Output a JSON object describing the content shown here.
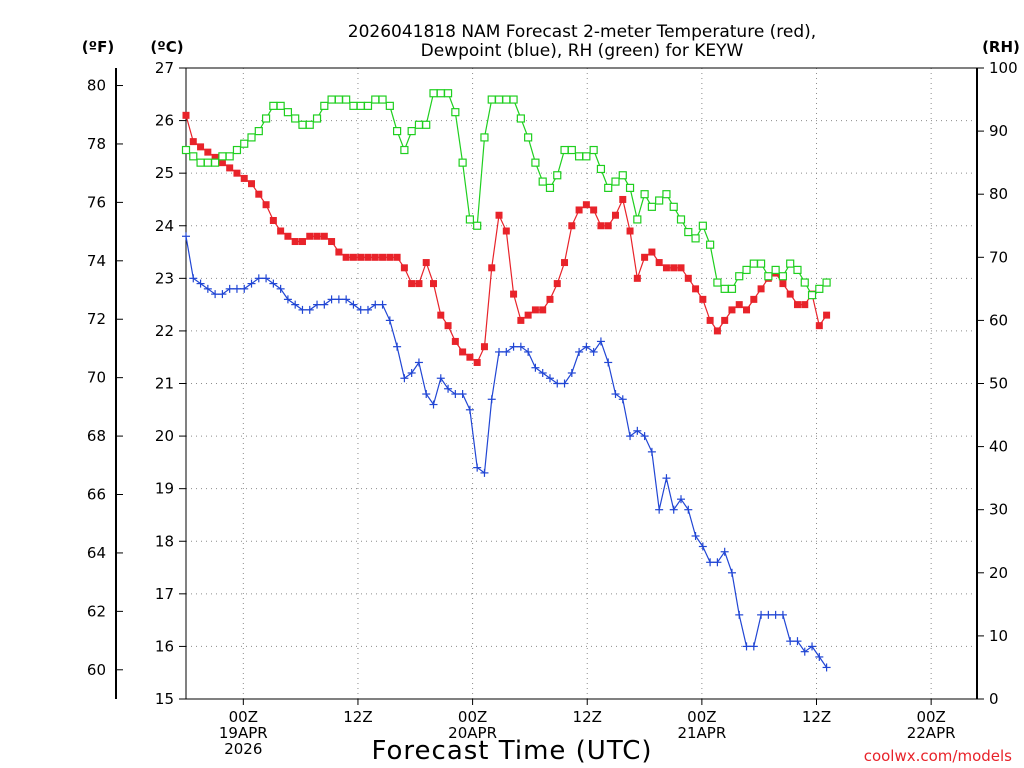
{
  "chart_data": {
    "type": "line",
    "title": "2026041818 NAM Forecast 2-meter Temperature (red),",
    "subtitle": "Dewpoint (blue), RH (green) for KEYW",
    "xlabel": "Forecast Time (UTC)",
    "y_left_unit": "(ºC)",
    "y_far_left_unit": "(ºF)",
    "y_right_unit": "(RH)",
    "ylim_c": [
      15,
      27
    ],
    "ylim_rh": [
      0,
      100
    ],
    "ylim_f": [
      59,
      80.6
    ],
    "x_range_hours": [
      -5,
      64
    ],
    "y_ticks_c": [
      15,
      16,
      17,
      18,
      19,
      20,
      21,
      22,
      23,
      24,
      25,
      26,
      27
    ],
    "y_ticks_f": [
      60,
      62,
      64,
      66,
      68,
      70,
      72,
      74,
      76,
      78,
      80
    ],
    "y_ticks_rh": [
      0,
      10,
      20,
      30,
      40,
      50,
      60,
      70,
      80,
      90,
      100
    ],
    "x_ticks": [
      {
        "hour": 0,
        "lines": [
          "00Z",
          "19APR",
          "2026"
        ]
      },
      {
        "hour": 10,
        "lines": [
          "12Z"
        ]
      },
      {
        "hour": 20,
        "lines": [
          "00Z",
          "20APR"
        ]
      },
      {
        "hour": 30,
        "lines": [
          "12Z"
        ]
      },
      {
        "hour": 40,
        "lines": [
          "00Z",
          "21APR"
        ]
      },
      {
        "hour": 50,
        "lines": [
          "12Z"
        ]
      },
      {
        "hour": 60,
        "lines": [
          "00Z",
          "22APR"
        ]
      }
    ],
    "grid": true,
    "x_start_hour": -5,
    "x_step_hours": 0.635,
    "series": [
      {
        "name": "Temperature",
        "color": "#e8232a",
        "marker": "filled-square",
        "values": [
          26.1,
          25.6,
          25.5,
          25.4,
          25.3,
          25.2,
          25.1,
          25.0,
          24.9,
          24.8,
          24.6,
          24.4,
          24.1,
          23.9,
          23.8,
          23.7,
          23.7,
          23.8,
          23.8,
          23.8,
          23.7,
          23.5,
          23.4,
          23.4,
          23.4,
          23.4,
          23.4,
          23.4,
          23.4,
          23.4,
          23.2,
          22.9,
          22.9,
          23.3,
          22.9,
          22.3,
          22.1,
          21.8,
          21.6,
          21.5,
          21.4,
          21.7,
          23.2,
          24.2,
          23.9,
          22.7,
          22.2,
          22.3,
          22.4,
          22.4,
          22.6,
          22.9,
          23.3,
          24.0,
          24.3,
          24.4,
          24.3,
          24.0,
          24.0,
          24.2,
          24.5,
          23.9,
          23.0,
          23.4,
          23.5,
          23.3,
          23.2,
          23.2,
          23.2,
          23.0,
          22.8,
          22.6,
          22.2,
          22.0,
          22.2,
          22.4,
          22.5,
          22.4,
          22.6,
          22.8,
          23.0,
          23.1,
          22.9,
          22.7,
          22.5,
          22.5,
          22.7,
          22.1,
          22.3
        ]
      },
      {
        "name": "Dewpoint",
        "color": "#2146d4",
        "marker": "plus",
        "values": [
          23.8,
          23.0,
          22.9,
          22.8,
          22.7,
          22.7,
          22.8,
          22.8,
          22.8,
          22.9,
          23.0,
          23.0,
          22.9,
          22.8,
          22.6,
          22.5,
          22.4,
          22.4,
          22.5,
          22.5,
          22.6,
          22.6,
          22.6,
          22.5,
          22.4,
          22.4,
          22.5,
          22.5,
          22.2,
          21.7,
          21.1,
          21.2,
          21.4,
          20.8,
          20.6,
          21.1,
          20.9,
          20.8,
          20.8,
          20.5,
          19.4,
          19.3,
          20.7,
          21.6,
          21.6,
          21.7,
          21.7,
          21.6,
          21.3,
          21.2,
          21.1,
          21.0,
          21.0,
          21.2,
          21.6,
          21.7,
          21.6,
          21.8,
          21.4,
          20.8,
          20.7,
          20.0,
          20.1,
          20.0,
          19.7,
          18.6,
          19.2,
          18.6,
          18.8,
          18.6,
          18.1,
          17.9,
          17.6,
          17.6,
          17.8,
          17.4,
          16.6,
          16.0,
          16.0,
          16.6,
          16.6,
          16.6,
          16.6,
          16.1,
          16.1,
          15.9,
          16.0,
          15.8,
          15.6
        ]
      },
      {
        "name": "RH",
        "color": "#1fcf1f",
        "marker": "open-square",
        "values": [
          87,
          86,
          85,
          85,
          85,
          86,
          86,
          87,
          88,
          89,
          90,
          92,
          94,
          94,
          93,
          92,
          91,
          91,
          92,
          94,
          95,
          95,
          95,
          94,
          94,
          94,
          95,
          95,
          94,
          90,
          87,
          90,
          91,
          91,
          96,
          96,
          96,
          93,
          85,
          76,
          75,
          89,
          95,
          95,
          95,
          95,
          92,
          89,
          85,
          82,
          81,
          83,
          87,
          87,
          86,
          86,
          87,
          84,
          81,
          82,
          83,
          81,
          76,
          80,
          78,
          79,
          80,
          78,
          76,
          74,
          73,
          75,
          72,
          66,
          65,
          65,
          67,
          68,
          69,
          69,
          67,
          68,
          67,
          69,
          68,
          66,
          64,
          65,
          66
        ]
      }
    ]
  },
  "credit": "coolwx.com/models"
}
